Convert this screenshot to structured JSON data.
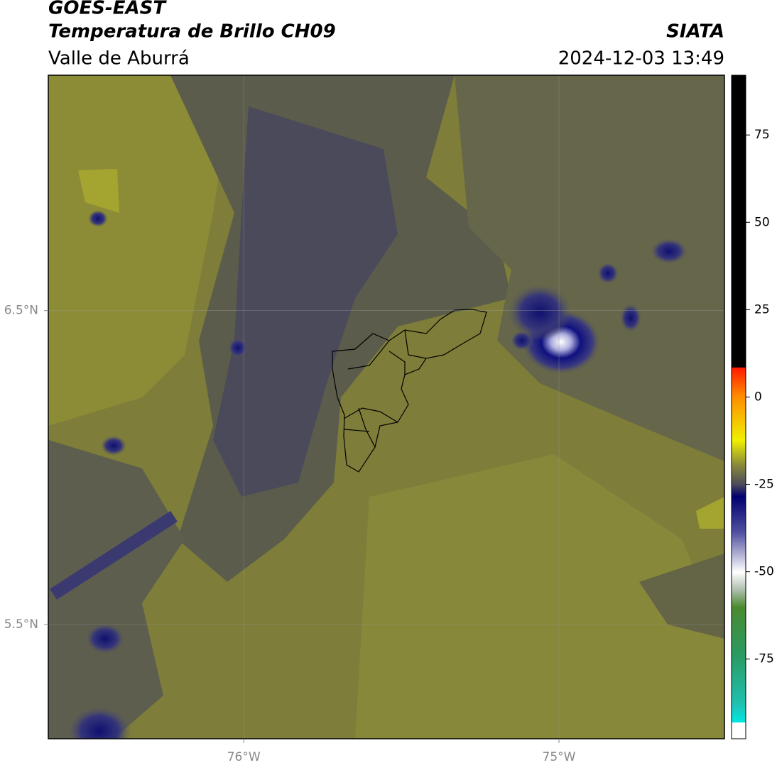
{
  "header": {
    "title": "GOES-EAST",
    "subtitle": "Temperatura de Brillo CH09",
    "region": "Valle de Aburrá",
    "source": "SIATA",
    "datetime": "2024-12-03 13:49"
  },
  "map": {
    "xlim": [
      -76.62,
      -74.475
    ],
    "ylim": [
      5.136,
      7.25
    ],
    "xticks": [
      {
        "value": -76,
        "label": "76°W"
      },
      {
        "value": -75,
        "label": "75°W"
      }
    ],
    "yticks": [
      {
        "value": 6.5,
        "label": "6.5°N"
      },
      {
        "value": 5.5,
        "label": "5.5°N"
      }
    ],
    "grid": true
  },
  "colorbar": {
    "lim": [
      -97.8,
      92.1
    ],
    "ticks": [
      75,
      50,
      25,
      0,
      -25,
      -50,
      -75
    ]
  }
}
